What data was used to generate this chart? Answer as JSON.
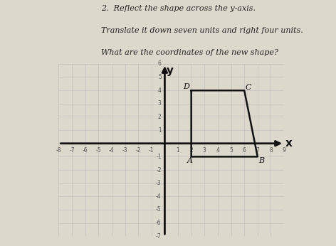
{
  "title_line1": "2.  Reflect the shape across the y-axis.",
  "title_line2": "Translate it down seven units and right four units.",
  "title_line3": "What are the coordinates of the new shape?",
  "bg_color": "#ddd8cc",
  "paper_color": "#e8e4da",
  "grid_color": "#bbbbbb",
  "axis_color": "#111111",
  "shape_color": "#111111",
  "shape_vertices": [
    [
      2,
      4
    ],
    [
      6,
      4
    ],
    [
      7,
      -1
    ],
    [
      2,
      -1
    ]
  ],
  "label_D": "D",
  "label_C": "C",
  "label_B": "B",
  "label_A": "A",
  "xlim": [
    -8,
    9
  ],
  "ylim": [
    -7,
    6
  ],
  "xlabel": "x",
  "ylabel": "y",
  "font_size_title": 8,
  "tick_step": 1
}
